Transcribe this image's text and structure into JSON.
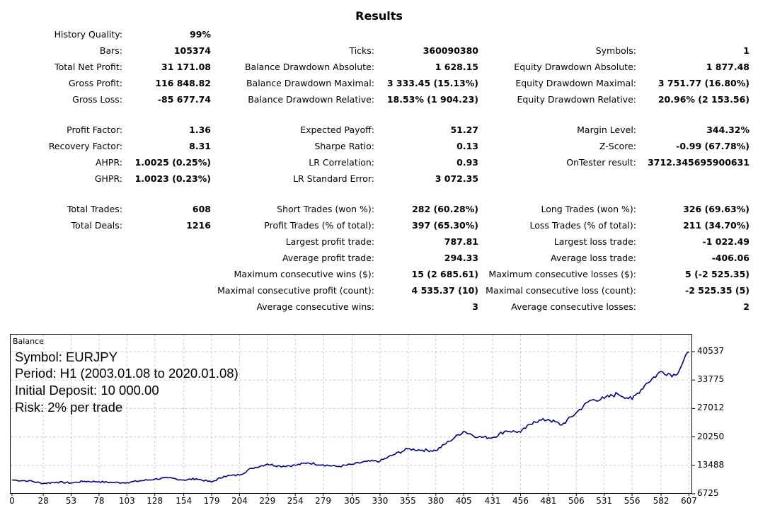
{
  "report": {
    "title": "Results",
    "col1": [
      {
        "label": "History Quality:",
        "value": "99%"
      },
      {
        "label": "Bars:",
        "value": "105374"
      },
      {
        "label": "Total Net Profit:",
        "value": "31 171.08"
      },
      {
        "label": "Gross Profit:",
        "value": "116 848.82"
      },
      {
        "label": "Gross Loss:",
        "value": "-85 677.74"
      },
      {
        "label": "Profit Factor:",
        "value": "1.36"
      },
      {
        "label": "Recovery Factor:",
        "value": "8.31"
      },
      {
        "label": "AHPR:",
        "value": "1.0025 (0.25%)"
      },
      {
        "label": "GHPR:",
        "value": "1.0023 (0.23%)"
      },
      {
        "label": "Total Trades:",
        "value": "608"
      },
      {
        "label": "Total Deals:",
        "value": "1216"
      }
    ],
    "col2": [
      {
        "label": "Ticks:",
        "value": "360090380"
      },
      {
        "label": "Balance Drawdown Absolute:",
        "value": "1 628.15"
      },
      {
        "label": "Balance Drawdown Maximal:",
        "value": "3 333.45 (15.13%)"
      },
      {
        "label": "Balance Drawdown Relative:",
        "value": "18.53% (1 904.23)"
      },
      {
        "label": "Expected Payoff:",
        "value": "51.27"
      },
      {
        "label": "Sharpe Ratio:",
        "value": "0.13"
      },
      {
        "label": "LR Correlation:",
        "value": "0.93"
      },
      {
        "label": "LR Standard Error:",
        "value": "3 072.35"
      },
      {
        "label": "Short Trades (won %):",
        "value": "282 (60.28%)"
      },
      {
        "label": "Profit Trades (% of total):",
        "value": "397 (65.30%)"
      },
      {
        "label": "Largest profit trade:",
        "value": "787.81"
      },
      {
        "label": "Average profit trade:",
        "value": "294.33"
      },
      {
        "label": "Maximum consecutive wins ($):",
        "value": "15 (2 685.61)"
      },
      {
        "label": "Maximal consecutive profit (count):",
        "value": "4 535.37 (10)"
      },
      {
        "label": "Average consecutive wins:",
        "value": "3"
      }
    ],
    "col3": [
      {
        "label": "Symbols:",
        "value": "1"
      },
      {
        "label": "Equity Drawdown Absolute:",
        "value": "1 877.48"
      },
      {
        "label": "Equity Drawdown Maximal:",
        "value": "3 751.77 (16.80%)"
      },
      {
        "label": "Equity Drawdown Relative:",
        "value": "20.96% (2 153.56)"
      },
      {
        "label": "Margin Level:",
        "value": "344.32%"
      },
      {
        "label": "Z-Score:",
        "value": "-0.99 (67.78%)"
      },
      {
        "label": "OnTester result:",
        "value": "3712.345695900631"
      },
      {
        "label": "Long Trades (won %):",
        "value": "326 (69.63%)"
      },
      {
        "label": "Loss Trades (% of total):",
        "value": "211 (34.70%)"
      },
      {
        "label": "Largest loss trade:",
        "value": "-1 022.49"
      },
      {
        "label": "Average loss trade:",
        "value": "-406.06"
      },
      {
        "label": "Maximum consecutive losses ($):",
        "value": "5 (-2 525.35)"
      },
      {
        "label": "Maximal consecutive loss (count):",
        "value": "-2 525.35 (5)"
      },
      {
        "label": "Average consecutive losses:",
        "value": "2"
      }
    ]
  },
  "chart_data": {
    "type": "line",
    "title": "Balance",
    "annotations": [
      "Symbol: EURJPY",
      "Period: H1 (2003.01.08 to 2020.01.08)",
      "Initial Deposit: 10 000.00",
      "Risk: 2% per trade"
    ],
    "xticks": [
      "0",
      "28",
      "53",
      "78",
      "103",
      "128",
      "154",
      "179",
      "204",
      "229",
      "254",
      "279",
      "305",
      "330",
      "355",
      "380",
      "405",
      "431",
      "456",
      "481",
      "506",
      "531",
      "556",
      "582",
      "607"
    ],
    "yticks": [
      "40537",
      "33775",
      "27012",
      "20250",
      "13488",
      "6725"
    ],
    "ylim": [
      6725,
      40537
    ],
    "xlim": [
      0,
      608
    ],
    "grid": true,
    "line_color": "#00008b",
    "series": [
      {
        "x": [
          0,
          15,
          28,
          40,
          53,
          65,
          78,
          90,
          103,
          115,
          128,
          140,
          154,
          165,
          179,
          190,
          204,
          215,
          229,
          240,
          254,
          265,
          279,
          292,
          305,
          318,
          330,
          342,
          355,
          368,
          380,
          392,
          405,
          418,
          431,
          443,
          456,
          468,
          481,
          493,
          506,
          518,
          531,
          543,
          556,
          569,
          582,
          595,
          607
        ],
        "y": [
          10000,
          9800,
          9200,
          9500,
          9300,
          9700,
          9600,
          9400,
          9400,
          9800,
          10200,
          10500,
          10000,
          10300,
          9500,
          10900,
          11200,
          12800,
          13800,
          13300,
          13500,
          14100,
          13600,
          13200,
          13700,
          14400,
          14500,
          16000,
          17400,
          17100,
          17000,
          19200,
          21600,
          20200,
          20100,
          21700,
          21400,
          23900,
          24400,
          23100,
          26000,
          28900,
          29400,
          30500,
          29200,
          33000,
          35800,
          34900,
          40500
        ]
      }
    ]
  }
}
